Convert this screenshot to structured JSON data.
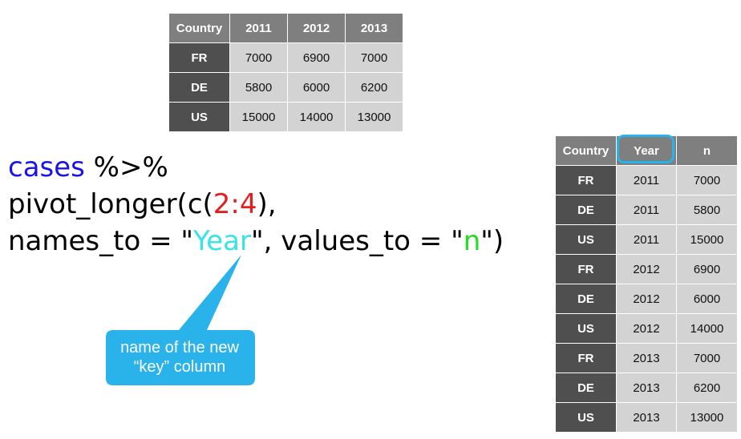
{
  "wide_table": {
    "headers": [
      "Country",
      "2011",
      "2012",
      "2013"
    ],
    "rows": [
      [
        "FR",
        "7000",
        "6900",
        "7000"
      ],
      [
        "DE",
        "5800",
        "6000",
        "6200"
      ],
      [
        "US",
        "15000",
        "14000",
        "13000"
      ]
    ]
  },
  "code": {
    "line1_object": "cases",
    "line1_pipe": " %>%",
    "line2_func": "pivot_longer(c(",
    "line2_range": "2:4",
    "line2_close": "),",
    "line3_names_arg": "names_to = \"",
    "line3_names_value": "Year",
    "line3_values_arg": "\", values_to = \"",
    "line3_values_value": "n",
    "line3_end": "\")"
  },
  "callout": {
    "line1": "name of the new",
    "line2": "“key” column"
  },
  "long_table": {
    "headers": [
      "Country",
      "Year",
      "n"
    ],
    "rows": [
      [
        "FR",
        "2011",
        "7000"
      ],
      [
        "DE",
        "2011",
        "5800"
      ],
      [
        "US",
        "2011",
        "15000"
      ],
      [
        "FR",
        "2012",
        "6900"
      ],
      [
        "DE",
        "2012",
        "6000"
      ],
      [
        "US",
        "2012",
        "14000"
      ],
      [
        "FR",
        "2013",
        "7000"
      ],
      [
        "DE",
        "2013",
        "6200"
      ],
      [
        "US",
        "2013",
        "13000"
      ]
    ]
  },
  "colors": {
    "header_bg": "#7f7f7f",
    "key_bg": "#4f4f4f",
    "cell_bg": "#d3d3d3",
    "keyword_blue": "#1a14e6",
    "range_red": "#e21f1f",
    "year_cyan": "#36e3e8",
    "n_green": "#22dd22",
    "callout_blue": "#29b3ea"
  }
}
